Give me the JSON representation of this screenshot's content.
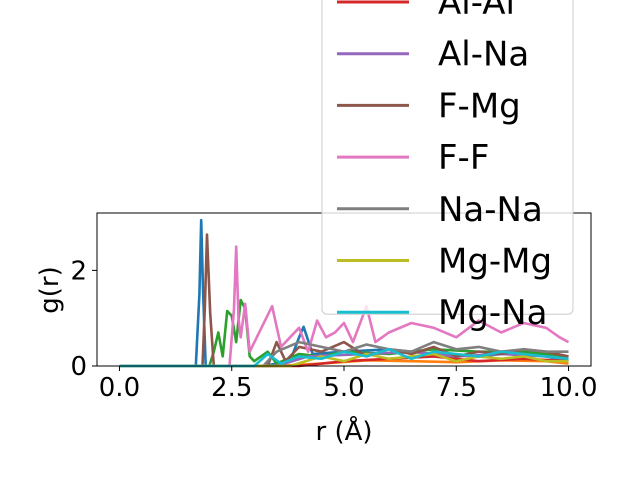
{
  "chart_data": {
    "type": "line",
    "xlabel": "r (Å)",
    "ylabel": "g(r)",
    "xlim": [
      -0.5,
      10.5
    ],
    "ylim": [
      0,
      3.2
    ],
    "xticks": [
      "0.0",
      "2.5",
      "5.0",
      "7.5",
      "10.0"
    ],
    "xtick_values": [
      0,
      2.5,
      5.0,
      7.5,
      10.0
    ],
    "yticks": [
      "0",
      "2"
    ],
    "ytick_values": [
      0,
      2
    ],
    "grid": false,
    "legend_position": "upper right, extending above the axes",
    "legend_entries": [
      "Al-Al",
      "Al-Na",
      "F-Mg",
      "F-F",
      "Na-Na",
      "Mg-Mg",
      "Mg-Na"
    ],
    "series": [
      {
        "name": "",
        "color": "#1f77b4",
        "x": [
          0,
          1.7,
          1.78,
          1.82,
          1.86,
          1.92,
          3.2,
          3.8,
          4.0,
          4.1,
          4.3,
          5.0,
          6.0,
          7.0,
          8.0,
          9.0,
          10.0
        ],
        "y": [
          0,
          0,
          1.5,
          3.05,
          1.6,
          0,
          0,
          0.1,
          0.6,
          0.82,
          0.25,
          0.3,
          0.35,
          0.25,
          0.2,
          0.3,
          0.1
        ]
      },
      {
        "name": "",
        "color": "#ff7f0e",
        "x": [
          0,
          3.5,
          4.5,
          5.5,
          6.5,
          7.5,
          8.5,
          9.5,
          10.0
        ],
        "y": [
          0,
          0,
          0.05,
          0.12,
          0.1,
          0.08,
          0.12,
          0.1,
          0.05
        ]
      },
      {
        "name": "",
        "color": "#2ca02c",
        "x": [
          0,
          2.0,
          2.1,
          2.2,
          2.3,
          2.4,
          2.5,
          2.6,
          2.7,
          2.8,
          2.9,
          3.0,
          3.3,
          3.5,
          4.0,
          4.5,
          5.0,
          6.0,
          7.0,
          8.0,
          9.0,
          10.0
        ],
        "y": [
          0,
          0,
          0.3,
          0.7,
          0.2,
          1.15,
          1.05,
          0.5,
          1.38,
          1.2,
          0.2,
          0.1,
          0.3,
          0.05,
          0.25,
          0.2,
          0.3,
          0.25,
          0.35,
          0.3,
          0.3,
          0.2
        ]
      },
      {
        "name": "Al-Al",
        "color": "#d62728",
        "x": [
          0,
          4.0,
          5.0,
          6.0,
          7.0,
          8.0,
          9.0,
          10.0
        ],
        "y": [
          0,
          0,
          0.1,
          0.15,
          0.2,
          0.1,
          0.15,
          0.1
        ]
      },
      {
        "name": "Al-Na",
        "color": "#9467bd",
        "x": [
          0,
          3.5,
          4.2,
          5.5,
          6.5,
          7.5,
          8.5,
          9.5,
          10.0
        ],
        "y": [
          0,
          0,
          0.2,
          0.25,
          0.3,
          0.2,
          0.25,
          0.2,
          0.15
        ]
      },
      {
        "name": "F-Mg",
        "color": "#8c564b",
        "x": [
          0,
          1.85,
          1.9,
          1.95,
          2.02,
          2.1,
          3.3,
          3.5,
          3.7,
          4.0,
          4.5,
          5.0,
          5.5,
          6.0,
          6.5,
          7.0,
          7.5,
          8.0,
          8.5,
          9.0,
          9.5,
          10.0
        ],
        "y": [
          0,
          0,
          1.2,
          2.75,
          1.1,
          0,
          0,
          0.5,
          0.1,
          0.4,
          0.3,
          0.5,
          0.2,
          0.35,
          0.25,
          0.4,
          0.2,
          0.3,
          0.25,
          0.35,
          0.3,
          0.2
        ]
      },
      {
        "name": "F-F",
        "color": "#e377c2",
        "x": [
          0,
          2.45,
          2.55,
          2.6,
          2.65,
          2.7,
          2.8,
          2.9,
          3.4,
          3.6,
          3.8,
          4.0,
          4.2,
          4.4,
          4.6,
          4.8,
          5.0,
          5.2,
          5.5,
          5.7,
          6.0,
          6.5,
          7.0,
          7.5,
          8.0,
          8.5,
          9.0,
          9.5,
          9.8,
          10.0
        ],
        "y": [
          0,
          0,
          1.2,
          2.5,
          1.0,
          0.6,
          1.3,
          0.3,
          1.25,
          0.4,
          0.6,
          0.8,
          0.3,
          0.95,
          0.6,
          0.7,
          0.9,
          0.5,
          1.25,
          0.5,
          0.7,
          0.9,
          0.8,
          0.6,
          0.95,
          0.7,
          0.9,
          0.8,
          0.6,
          0.5
        ]
      },
      {
        "name": "Na-Na",
        "color": "#7f7f7f",
        "x": [
          0,
          3.2,
          3.5,
          4.0,
          4.5,
          5.0,
          5.5,
          6.0,
          6.5,
          7.0,
          7.5,
          8.0,
          8.5,
          9.0,
          9.5,
          10.0
        ],
        "y": [
          0,
          0,
          0.3,
          0.5,
          0.4,
          0.3,
          0.45,
          0.35,
          0.3,
          0.5,
          0.35,
          0.4,
          0.3,
          0.35,
          0.3,
          0.3
        ]
      },
      {
        "name": "Mg-Mg",
        "color": "#bcbd22",
        "x": [
          0,
          3.8,
          4.5,
          5.0,
          5.5,
          6.0,
          6.5,
          7.0,
          7.5,
          8.0,
          8.5,
          9.0,
          9.5,
          10.0
        ],
        "y": [
          0,
          0,
          0.2,
          0.1,
          0.25,
          0.15,
          0.2,
          0.25,
          0.1,
          0.2,
          0.15,
          0.2,
          0.1,
          0.1
        ]
      },
      {
        "name": "Mg-Na",
        "color": "#17becf",
        "x": [
          0,
          3.0,
          3.3,
          3.6,
          4.0,
          4.5,
          5.0,
          5.5,
          6.0,
          6.5,
          7.0,
          7.5,
          8.0,
          8.5,
          9.0,
          9.5,
          10.0
        ],
        "y": [
          0,
          0,
          0.25,
          0.05,
          0.2,
          0.15,
          0.3,
          0.2,
          0.35,
          0.15,
          0.3,
          0.25,
          0.2,
          0.3,
          0.25,
          0.2,
          0.15
        ]
      }
    ]
  }
}
